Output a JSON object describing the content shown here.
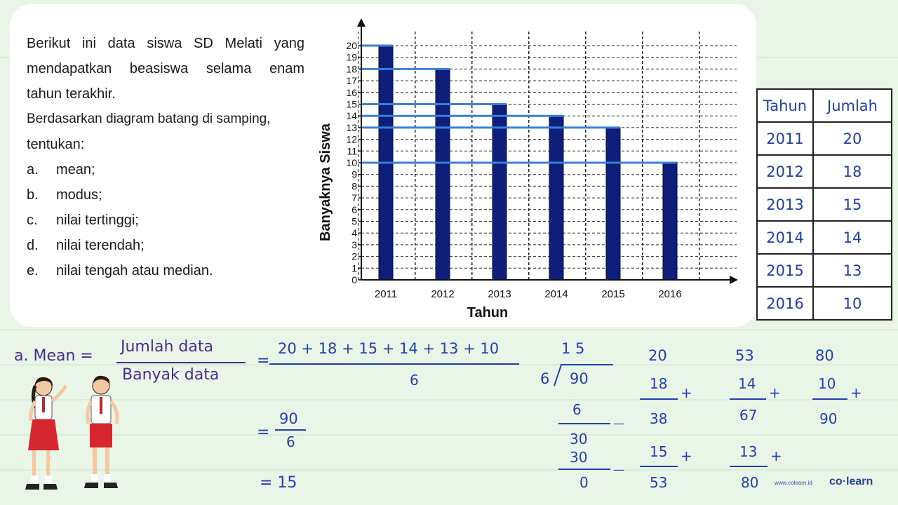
{
  "problem": {
    "lines": [
      "Berikut ini data siswa SD Melati yang",
      "mendapatkan beasiswa selama enam",
      "tahun terakhir.",
      "Berdasarkan diagram batang di samping,",
      "tentukan:"
    ],
    "questions": [
      {
        "label": "a.",
        "text": "mean;"
      },
      {
        "label": "b.",
        "text": "modus;"
      },
      {
        "label": "c.",
        "text": "nilai tertinggi;"
      },
      {
        "label": "d.",
        "text": "nilai terendah;"
      },
      {
        "label": "e.",
        "text": "nilai tengah atau median."
      }
    ]
  },
  "chart_data": {
    "type": "bar",
    "categories": [
      "2011",
      "2012",
      "2013",
      "2014",
      "2015",
      "2016"
    ],
    "values": [
      20,
      18,
      15,
      14,
      13,
      10
    ],
    "xlabel": "Tahun",
    "ylabel": "Banyaknya Siswa",
    "ylim": [
      0,
      20
    ],
    "yticks": [
      0,
      1,
      2,
      3,
      4,
      5,
      6,
      7,
      8,
      9,
      10,
      11,
      12,
      13,
      14,
      15,
      16,
      17,
      18,
      19,
      20
    ],
    "grid": true,
    "bar_color": "#0d1f7a"
  },
  "table": {
    "headers": [
      "Tahun",
      "Jumlah"
    ],
    "rows": [
      [
        "2011",
        "20"
      ],
      [
        "2012",
        "18"
      ],
      [
        "2013",
        "15"
      ],
      [
        "2014",
        "14"
      ],
      [
        "2015",
        "13"
      ],
      [
        "2016",
        "10"
      ]
    ]
  },
  "solution": {
    "label": "a. Mean =",
    "numerator_words": "Jumlah data",
    "denominator_words": "Banyak data",
    "eq1": "=",
    "numerator_values": "20 + 18 + 15 + 14 + 13 + 10",
    "denominator_value": "6",
    "eq2": "=",
    "frac2_num": "90",
    "frac2_den": "6",
    "eq3": "= 15"
  },
  "long_division": {
    "quotient": "1 5",
    "divisor": "6",
    "dividend": "90",
    "step1": "6",
    "minus1": "—",
    "rem1": "30",
    "step2": "30",
    "minus2": "—",
    "rem2": "0"
  },
  "addition": {
    "col1": {
      "a": "20",
      "b": "18",
      "op1": "+",
      "s1": "38",
      "c": "15",
      "op2": "+",
      "s2": "53"
    },
    "col2": {
      "a": "53",
      "b": "14",
      "op1": "+",
      "s1": "67",
      "c": "13",
      "op2": "+",
      "s2": "80"
    },
    "col3": {
      "a": "80",
      "b": "10",
      "op1": "+",
      "s1": "90"
    }
  },
  "brand": {
    "url": "www.colearn.id",
    "name": "co·learn"
  }
}
